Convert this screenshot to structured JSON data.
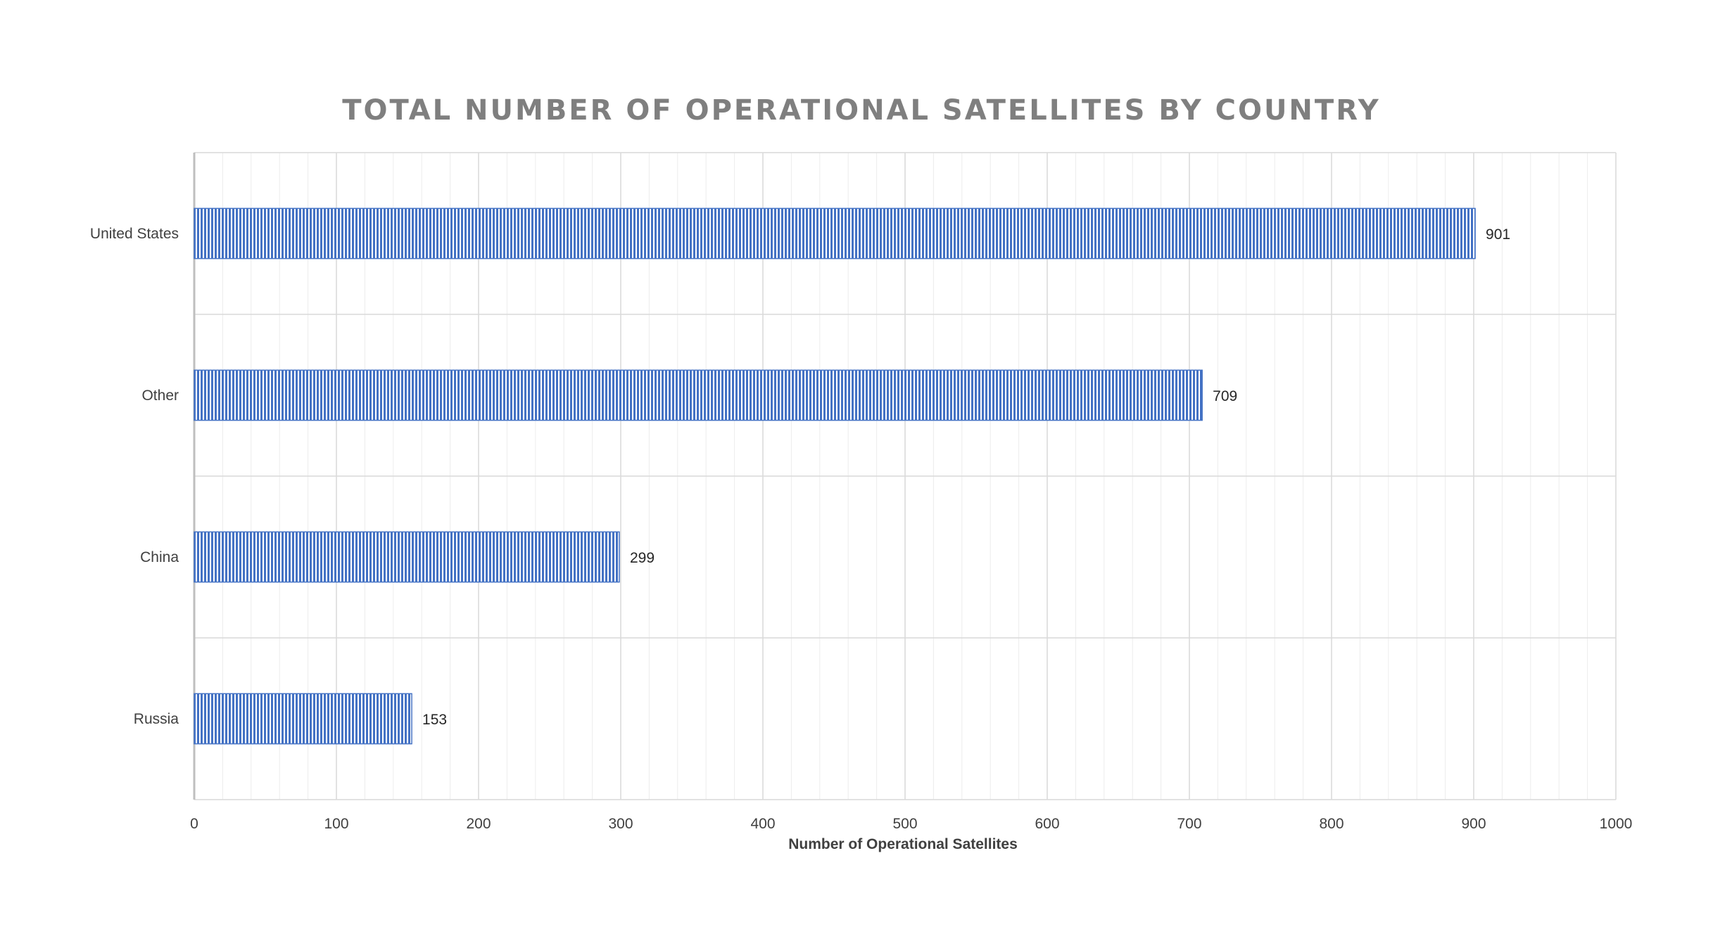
{
  "chart_data": {
    "type": "bar",
    "orientation": "horizontal",
    "title": "TOTAL NUMBER OF OPERATIONAL SATELLITES BY COUNTRY",
    "xlabel": "Number of Operational Satellites",
    "ylabel": "",
    "categories": [
      "United States",
      "Other",
      "China",
      "Russia"
    ],
    "values": [
      901,
      709,
      299,
      153
    ],
    "data_labels": [
      "901",
      "709",
      "299",
      "153"
    ],
    "xlim": [
      0,
      1000
    ],
    "x_ticks": [
      "0",
      "100",
      "200",
      "300",
      "400",
      "500",
      "600",
      "700",
      "800",
      "900",
      "1000"
    ],
    "grid": true,
    "legend": "none",
    "bar_color": "#4472c4"
  }
}
